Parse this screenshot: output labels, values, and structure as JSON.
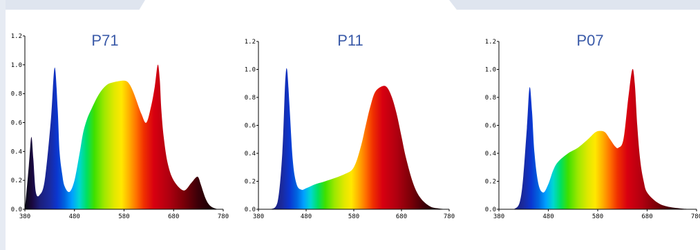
{
  "chart_data": [
    {
      "type": "area",
      "title": "P71",
      "xlabel": "",
      "ylabel": "",
      "xlim": [
        380,
        780
      ],
      "ylim": [
        0,
        1.2
      ],
      "x_ticks": [
        380,
        480,
        580,
        680,
        780
      ],
      "x_tick_labels": [
        "380",
        "480",
        "580",
        "680",
        "780"
      ],
      "y_ticks": [
        0.0,
        0.2,
        0.4,
        0.6,
        0.8,
        1.0,
        1.2
      ],
      "y_tick_labels": [
        "0.0",
        "0.2",
        "0.4",
        "0.6",
        "0.8",
        "1.0",
        "1.2"
      ],
      "fill": "spectral gradient",
      "series": [
        {
          "x": [
            380,
            388,
            393,
            397,
            402,
            410,
            420,
            432,
            440,
            446,
            450,
            455,
            460,
            470,
            480,
            490,
            497,
            505,
            515,
            530,
            545,
            560,
            580,
            590,
            600,
            615,
            625,
            635,
            642,
            648,
            652,
            655,
            660,
            668,
            680,
            700,
            715,
            725,
            730,
            735,
            745,
            755,
            770,
            780
          ],
          "y": [
            0.0,
            0.3,
            0.5,
            0.35,
            0.12,
            0.1,
            0.2,
            0.6,
            0.98,
            0.7,
            0.4,
            0.25,
            0.16,
            0.12,
            0.2,
            0.38,
            0.52,
            0.62,
            0.7,
            0.8,
            0.86,
            0.88,
            0.89,
            0.87,
            0.8,
            0.66,
            0.6,
            0.72,
            0.85,
            1.0,
            0.9,
            0.7,
            0.5,
            0.32,
            0.2,
            0.13,
            0.18,
            0.22,
            0.22,
            0.17,
            0.07,
            0.02,
            0.0,
            0.0
          ]
        }
      ]
    },
    {
      "type": "area",
      "title": "P11",
      "xlabel": "",
      "ylabel": "",
      "xlim": [
        380,
        780
      ],
      "ylim": [
        0,
        1.2
      ],
      "x_ticks": [
        380,
        480,
        580,
        680,
        780
      ],
      "x_tick_labels": [
        "380",
        "480",
        "580",
        "680",
        "780"
      ],
      "y_ticks": [
        0.0,
        0.2,
        0.4,
        0.6,
        0.8,
        1.0,
        1.2
      ],
      "y_tick_labels": [
        "0.0",
        "0.2",
        "0.4",
        "0.6",
        "0.8",
        "1.0",
        "1.2"
      ],
      "fill": "spectral gradient",
      "series": [
        {
          "x": [
            380,
            405,
            420,
            430,
            436,
            440,
            445,
            452,
            460,
            470,
            480,
            500,
            520,
            560,
            580,
            595,
            605,
            615,
            625,
            640,
            650,
            660,
            670,
            680,
            690,
            705,
            720,
            740,
            760,
            780
          ],
          "y": [
            0.0,
            0.0,
            0.05,
            0.4,
            0.9,
            1.0,
            0.75,
            0.35,
            0.18,
            0.14,
            0.15,
            0.18,
            0.2,
            0.25,
            0.3,
            0.45,
            0.6,
            0.74,
            0.84,
            0.88,
            0.87,
            0.8,
            0.68,
            0.52,
            0.36,
            0.18,
            0.08,
            0.02,
            0.005,
            0.0
          ]
        }
      ]
    },
    {
      "type": "area",
      "title": "P07",
      "xlabel": "",
      "ylabel": "",
      "xlim": [
        380,
        780
      ],
      "ylim": [
        0,
        1.2
      ],
      "x_ticks": [
        380,
        480,
        580,
        680,
        780
      ],
      "x_tick_labels": [
        "380",
        "480",
        "580",
        "680",
        "780"
      ],
      "y_ticks": [
        0.0,
        0.2,
        0.4,
        0.6,
        0.8,
        1.0,
        1.2
      ],
      "y_tick_labels": [
        "0.0",
        "0.2",
        "0.4",
        "0.6",
        "0.8",
        "1.0",
        "1.2"
      ],
      "fill": "spectral gradient",
      "series": [
        {
          "x": [
            380,
            410,
            425,
            436,
            442,
            447,
            452,
            460,
            470,
            480,
            490,
            500,
            520,
            540,
            560,
            575,
            585,
            595,
            605,
            615,
            622,
            632,
            642,
            650,
            655,
            660,
            666,
            673,
            680,
            700,
            720,
            750,
            780
          ],
          "y": [
            0.0,
            0.0,
            0.1,
            0.55,
            0.87,
            0.7,
            0.4,
            0.18,
            0.12,
            0.18,
            0.28,
            0.34,
            0.4,
            0.44,
            0.5,
            0.55,
            0.56,
            0.55,
            0.5,
            0.45,
            0.44,
            0.5,
            0.8,
            1.0,
            0.9,
            0.6,
            0.35,
            0.2,
            0.12,
            0.05,
            0.02,
            0.005,
            0.0
          ]
        }
      ]
    }
  ]
}
